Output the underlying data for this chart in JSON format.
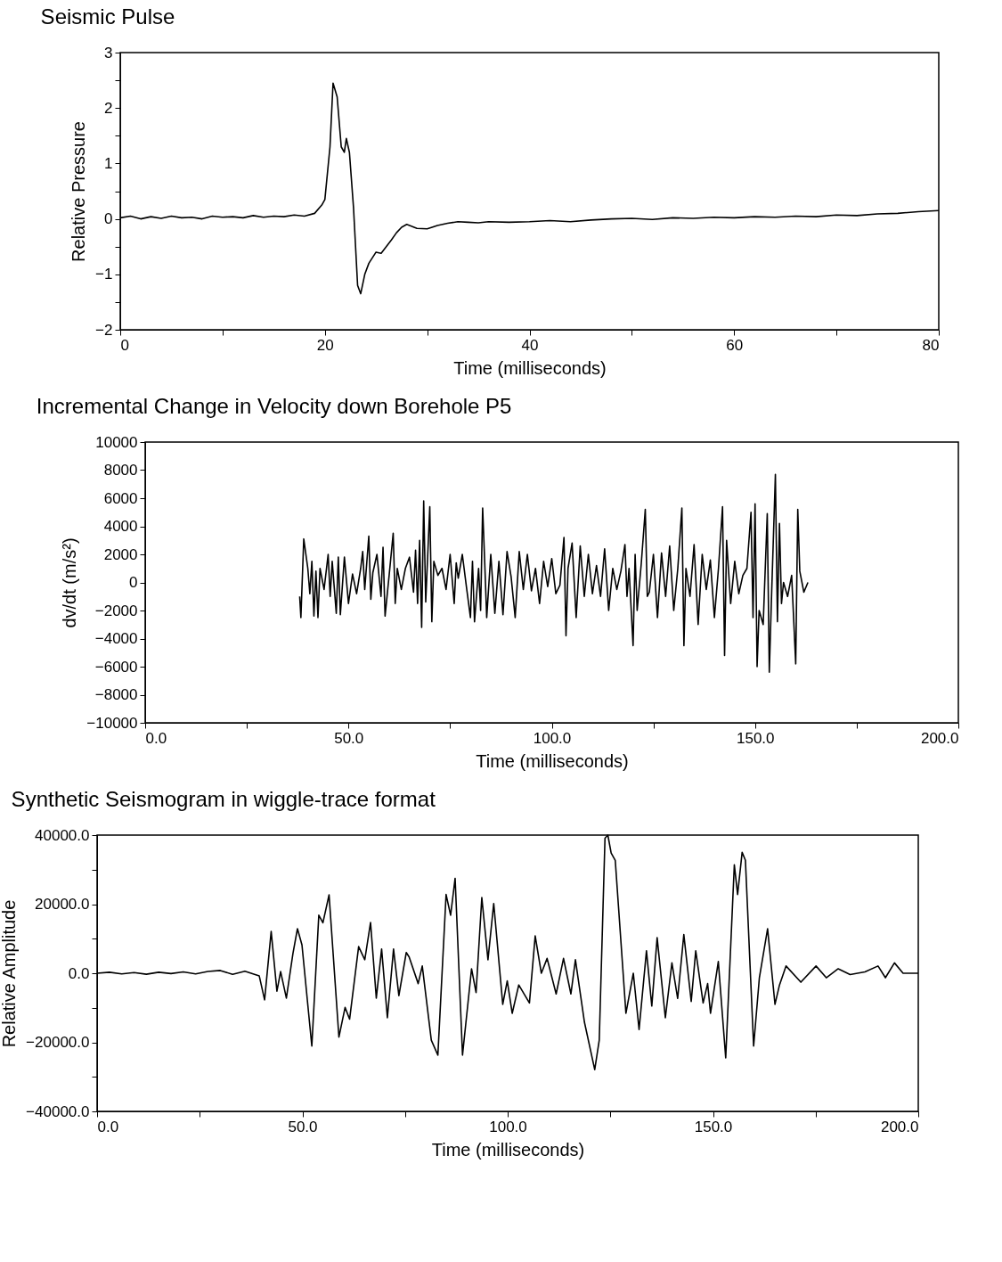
{
  "chart_data": [
    {
      "type": "line",
      "title": "Seismic Pulse",
      "xlabel": "Time (milliseconds)",
      "ylabel": "Relative Pressure",
      "x": [
        0,
        1,
        2,
        3,
        4,
        5,
        6,
        7,
        8,
        9,
        10,
        11,
        12,
        13,
        14,
        15,
        16,
        17,
        18,
        19,
        19.7,
        20,
        20.5,
        20.8,
        21.2,
        21.6,
        21.9,
        22.1,
        22.4,
        22.8,
        23.2,
        23.5,
        23.9,
        24.3,
        25,
        25.5,
        26,
        26.5,
        27,
        27.5,
        28,
        29,
        30,
        31,
        32,
        33,
        34,
        35,
        36,
        38,
        40,
        42,
        44,
        46,
        48,
        50,
        52,
        54,
        56,
        58,
        60,
        62,
        64,
        66,
        68,
        70,
        72,
        74,
        76,
        78,
        80
      ],
      "series": [
        {
          "color": "#000000",
          "values": [
            0.02,
            0.05,
            0.0,
            0.04,
            0.01,
            0.05,
            0.02,
            0.03,
            0.0,
            0.05,
            0.03,
            0.04,
            0.02,
            0.06,
            0.03,
            0.05,
            0.04,
            0.07,
            0.05,
            0.1,
            0.25,
            0.35,
            1.3,
            2.45,
            2.2,
            1.3,
            1.2,
            1.45,
            1.2,
            0.2,
            -1.2,
            -1.35,
            -1.0,
            -0.8,
            -0.6,
            -0.62,
            -0.5,
            -0.38,
            -0.25,
            -0.15,
            -0.1,
            -0.17,
            -0.18,
            -0.12,
            -0.08,
            -0.05,
            -0.06,
            -0.07,
            -0.05,
            -0.06,
            -0.05,
            -0.03,
            -0.05,
            -0.02,
            0.0,
            0.01,
            -0.01,
            0.02,
            0.01,
            0.03,
            0.02,
            0.04,
            0.03,
            0.05,
            0.04,
            0.07,
            0.06,
            0.09,
            0.1,
            0.13,
            0.15
          ]
        }
      ],
      "xlim": [
        0,
        80
      ],
      "xticks": [
        0,
        {
          "value": 10,
          "label": null
        },
        20,
        {
          "value": 30,
          "label": null
        },
        40,
        {
          "value": 50,
          "label": null
        },
        60,
        {
          "value": 70,
          "label": null
        },
        80
      ],
      "ylim": [
        -2,
        3
      ],
      "yticks": [
        {
          "value": -2,
          "label": "−2"
        },
        {
          "value": -1.5,
          "label": null
        },
        {
          "value": -1,
          "label": "−1"
        },
        {
          "value": -0.5,
          "label": null
        },
        0,
        {
          "value": 0.5,
          "label": null
        },
        1,
        {
          "value": 1.5,
          "label": null
        },
        2,
        {
          "value": 2.5,
          "label": null
        },
        3
      ]
    },
    {
      "type": "line",
      "title": "Incremental Change in Velocity down Borehole P5",
      "xlabel": "Time (milliseconds)",
      "ylabel": "dv/dt (m/s²)",
      "x": [
        38,
        38.3,
        39,
        40,
        40.5,
        41,
        41.5,
        42,
        42.5,
        43,
        44,
        45,
        45.5,
        46,
        47,
        47.5,
        48,
        49,
        50,
        51,
        52,
        53,
        53.5,
        54,
        55,
        55.5,
        56,
        57,
        58,
        58.5,
        59,
        60,
        61,
        61.5,
        62,
        63,
        64,
        65,
        66,
        66.5,
        67,
        67.5,
        68,
        68.5,
        69,
        70,
        70.5,
        71,
        72,
        73,
        74,
        75,
        76,
        76.5,
        77,
        78,
        79,
        80,
        80.5,
        81,
        82,
        82.5,
        83,
        83.5,
        84,
        85,
        86,
        87,
        88,
        89,
        90,
        91,
        92,
        93,
        94,
        95,
        96,
        97,
        98,
        99,
        100,
        101,
        102,
        103,
        103.5,
        104,
        105,
        106,
        107,
        108,
        109,
        110,
        111,
        112,
        113,
        114,
        115,
        116,
        117,
        118,
        118.5,
        119,
        120,
        120.5,
        121,
        122,
        123,
        123.5,
        124,
        125,
        126,
        127,
        128,
        129,
        130,
        131,
        132,
        132.5,
        133,
        134,
        135,
        136,
        137,
        138,
        139,
        140,
        141,
        142,
        142.5,
        143,
        144,
        145,
        146,
        147,
        148,
        149,
        149.5,
        150,
        150.5,
        151,
        152,
        153,
        153.5,
        154,
        155,
        155.5,
        156,
        156.5,
        157,
        158,
        159,
        160,
        160.5,
        161,
        162,
        163
      ],
      "series": [
        {
          "color": "#000000",
          "values": [
            -1000,
            -2500,
            3100,
            1000,
            -800,
            1500,
            -2400,
            800,
            -2500,
            1000,
            -500,
            2000,
            -1000,
            1500,
            -2200,
            1800,
            -2300,
            1800,
            -1500,
            600,
            -800,
            1000,
            2200,
            -500,
            3300,
            -1200,
            700,
            2000,
            -1000,
            2500,
            -2400,
            500,
            3500,
            -1500,
            1000,
            -500,
            1000,
            1800,
            -700,
            2300,
            -1500,
            3000,
            -3200,
            5800,
            -1400,
            5400,
            -2800,
            1500,
            500,
            1000,
            -500,
            2000,
            -1500,
            1400,
            300,
            2000,
            -300,
            -2500,
            1500,
            -2800,
            1000,
            -2000,
            5300,
            1500,
            -2500,
            2000,
            -2200,
            1500,
            -2300,
            2200,
            400,
            -2500,
            2200,
            -500,
            2000,
            -600,
            1000,
            -1500,
            1500,
            -300,
            1700,
            -800,
            -200,
            3200,
            -3800,
            1000,
            2800,
            -2500,
            2600,
            -1000,
            2000,
            -800,
            1200,
            -1000,
            2400,
            -2000,
            1000,
            -500,
            800,
            2700,
            -1000,
            1000,
            -4500,
            2000,
            -2000,
            1300,
            5200,
            -1000,
            -700,
            2000,
            -2500,
            2100,
            -1000,
            2600,
            -2000,
            1000,
            5300,
            -4500,
            1000,
            -1000,
            2700,
            -3000,
            2000,
            -500,
            1600,
            -2500,
            1000,
            5400,
            -5200,
            3000,
            -1500,
            1500,
            -800,
            500,
            1000,
            5000,
            -2500,
            5600,
            -6000,
            -2000,
            -3000,
            4900,
            -6400,
            -1500,
            7700,
            -2800,
            4200,
            -1500,
            0,
            -1000,
            500,
            -5800,
            5200,
            800,
            -700,
            0
          ]
        }
      ],
      "xlim": [
        0,
        200
      ],
      "xticks": [
        {
          "value": 0,
          "label": "0.0"
        },
        {
          "value": 25,
          "label": null
        },
        {
          "value": 50,
          "label": "50.0"
        },
        {
          "value": 75,
          "label": null
        },
        {
          "value": 100,
          "label": "100.0"
        },
        {
          "value": 125,
          "label": null
        },
        {
          "value": 150,
          "label": "150.0"
        },
        {
          "value": 175,
          "label": null
        },
        {
          "value": 200,
          "label": "200.0"
        }
      ],
      "ylim": [
        -10000,
        10000
      ],
      "yticks": [
        {
          "value": -10000,
          "label": "−10000"
        },
        {
          "value": -8000,
          "label": "−8000"
        },
        {
          "value": -6000,
          "label": "−6000"
        },
        {
          "value": -4000,
          "label": "−4000"
        },
        {
          "value": -2000,
          "label": "−2000"
        },
        0,
        2000,
        4000,
        6000,
        8000,
        10000
      ]
    },
    {
      "type": "line",
      "title": "Synthetic Seismogram in wiggle-trace format",
      "xlabel": "Time (milliseconds)",
      "ylabel": "Relative Amplitude",
      "x": [
        0,
        3,
        6,
        9,
        12,
        15,
        18,
        21,
        24,
        27,
        30,
        33,
        36,
        38,
        39.5,
        40.8,
        42.4,
        43.8,
        44.7,
        46.1,
        47.7,
        48.8,
        49.9,
        52.3,
        54,
        55,
        56.5,
        58.9,
        60.4,
        61.5,
        63.7,
        65.2,
        66.6,
        68,
        69.3,
        70.7,
        72.2,
        73.5,
        75.3,
        76,
        78.2,
        79.2,
        81.4,
        83,
        85,
        86.1,
        87.2,
        89,
        91.2,
        92.3,
        93.7,
        95.2,
        96.6,
        98.8,
        99.9,
        101.1,
        102.7,
        105.3,
        106.7,
        108.2,
        109.6,
        111.8,
        113.6,
        115.4,
        116.5,
        118.7,
        121.2,
        122.3,
        123.7,
        124.4,
        125.2,
        126.2,
        128.8,
        130.6,
        132,
        133.8,
        135.1,
        136.4,
        138.4,
        140,
        141.4,
        142.9,
        144.7,
        145.8,
        147.6,
        148.7,
        149.4,
        151.3,
        153.1,
        155.2,
        156,
        157.1,
        157.9,
        159.9,
        161.3,
        163.3,
        165.1,
        166.2,
        167.8,
        171.4,
        175.1,
        177.6,
        180.5,
        183.4,
        187,
        190.2,
        192,
        194.2,
        196.3,
        199.2,
        200
      ],
      "series": [
        {
          "color": "#000000",
          "values": [
            0,
            300,
            -200,
            200,
            -300,
            300,
            -100,
            400,
            -200,
            500,
            800,
            -300,
            600,
            -200,
            -800,
            -7700,
            12100,
            -5200,
            500,
            -7200,
            5700,
            12900,
            8200,
            -21100,
            16800,
            14600,
            22700,
            -18500,
            -9900,
            -13300,
            7700,
            3900,
            14700,
            -7200,
            7000,
            -12900,
            7000,
            -6500,
            6000,
            4700,
            -3000,
            2100,
            -19400,
            -23700,
            22800,
            16800,
            27500,
            -23700,
            1300,
            -5600,
            21900,
            3900,
            20200,
            -9000,
            -2200,
            -11600,
            -3400,
            -8600,
            10800,
            0,
            4300,
            -6000,
            4300,
            -6000,
            3900,
            -14200,
            -27900,
            -19400,
            39100,
            40000,
            34800,
            32700,
            -11600,
            0,
            -16300,
            6500,
            -9500,
            10300,
            -12900,
            3000,
            -7300,
            11200,
            -8200,
            6500,
            -8600,
            -3000,
            -11600,
            3400,
            -24500,
            31400,
            22800,
            35000,
            32700,
            -21100,
            -1300,
            12900,
            -9000,
            -3400,
            2100,
            -2600,
            2100,
            -1300,
            1300,
            -400,
            400,
            2100,
            -1300,
            3000,
            0,
            0,
            0
          ]
        }
      ],
      "xlim": [
        0,
        200
      ],
      "xticks": [
        {
          "value": 0,
          "label": "0.0"
        },
        {
          "value": 25,
          "label": null
        },
        {
          "value": 50,
          "label": "50.0"
        },
        {
          "value": 75,
          "label": null
        },
        {
          "value": 100,
          "label": "100.0"
        },
        {
          "value": 125,
          "label": null
        },
        {
          "value": 150,
          "label": "150.0"
        },
        {
          "value": 175,
          "label": null
        },
        {
          "value": 200,
          "label": "200.0"
        }
      ],
      "ylim": [
        -40000,
        40000
      ],
      "yticks": [
        {
          "value": -40000,
          "label": "−40000.0"
        },
        {
          "value": -30000,
          "label": null
        },
        {
          "value": -20000,
          "label": "−20000.0"
        },
        {
          "value": -10000,
          "label": null
        },
        {
          "value": 0,
          "label": "0.0"
        },
        {
          "value": 10000,
          "label": null
        },
        {
          "value": 20000,
          "label": "20000.0"
        },
        {
          "value": 30000,
          "label": null
        },
        {
          "value": 40000,
          "label": "40000.0"
        }
      ]
    }
  ]
}
